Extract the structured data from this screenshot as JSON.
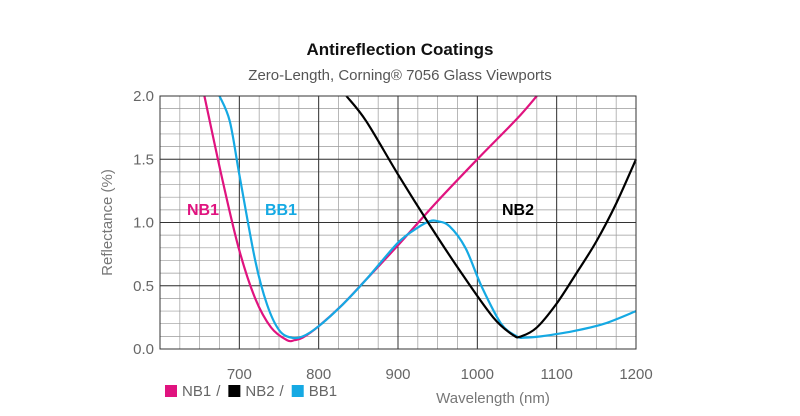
{
  "chart_data": {
    "type": "line",
    "title": "Antireflection Coatings",
    "subtitle": "Zero-Length, Corning® 7056 Glass Viewports",
    "xlabel": "Wavelength (nm)",
    "ylabel": "Reflectance (%)",
    "xlim": [
      600,
      1200
    ],
    "ylim": [
      0,
      2.0
    ],
    "x_ticks": [
      700,
      800,
      900,
      1000,
      1100,
      1200
    ],
    "y_ticks": [
      "0.0",
      "0.5",
      "1.0",
      "1.5",
      "2.0"
    ],
    "grid": true,
    "minor_x_step": 25,
    "minor_y_step": 0.1,
    "legend": {
      "placement": "bottom-left",
      "separator": "/",
      "items": [
        {
          "name": "NB1",
          "color": "#e0137f"
        },
        {
          "name": "NB2",
          "color": "#000000"
        },
        {
          "name": "BB1",
          "color": "#15a9e3"
        }
      ]
    },
    "series": [
      {
        "name": "NB1",
        "color": "#e0137f",
        "inline_label": "NB1",
        "points": [
          [
            656,
            2.0
          ],
          [
            680,
            1.3
          ],
          [
            700,
            0.78
          ],
          [
            720,
            0.4
          ],
          [
            740,
            0.17
          ],
          [
            760,
            0.07
          ],
          [
            770,
            0.07
          ],
          [
            780,
            0.09
          ],
          [
            800,
            0.18
          ],
          [
            830,
            0.35
          ],
          [
            860,
            0.55
          ],
          [
            900,
            0.82
          ],
          [
            950,
            1.17
          ],
          [
            1000,
            1.5
          ],
          [
            1050,
            1.82
          ],
          [
            1075,
            2.0
          ]
        ]
      },
      {
        "name": "BB1",
        "color": "#15a9e3",
        "inline_label": "BB1",
        "points": [
          [
            675,
            2.0
          ],
          [
            688,
            1.8
          ],
          [
            700,
            1.38
          ],
          [
            720,
            0.7
          ],
          [
            735,
            0.35
          ],
          [
            750,
            0.15
          ],
          [
            765,
            0.09
          ],
          [
            780,
            0.1
          ],
          [
            800,
            0.18
          ],
          [
            830,
            0.35
          ],
          [
            860,
            0.55
          ],
          [
            900,
            0.84
          ],
          [
            925,
            0.96
          ],
          [
            940,
            1.01
          ],
          [
            950,
            1.01
          ],
          [
            965,
            0.97
          ],
          [
            985,
            0.8
          ],
          [
            1005,
            0.5
          ],
          [
            1030,
            0.2
          ],
          [
            1050,
            0.1
          ],
          [
            1060,
            0.09
          ],
          [
            1080,
            0.1
          ],
          [
            1120,
            0.14
          ],
          [
            1160,
            0.2
          ],
          [
            1200,
            0.3
          ]
        ]
      },
      {
        "name": "NB2",
        "color": "#000000",
        "inline_label": "NB2",
        "points": [
          [
            835,
            2.0
          ],
          [
            860,
            1.8
          ],
          [
            900,
            1.38
          ],
          [
            940,
            0.98
          ],
          [
            980,
            0.6
          ],
          [
            1020,
            0.25
          ],
          [
            1045,
            0.11
          ],
          [
            1055,
            0.1
          ],
          [
            1075,
            0.17
          ],
          [
            1100,
            0.36
          ],
          [
            1125,
            0.6
          ],
          [
            1150,
            0.85
          ],
          [
            1175,
            1.15
          ],
          [
            1200,
            1.5
          ]
        ]
      }
    ]
  }
}
